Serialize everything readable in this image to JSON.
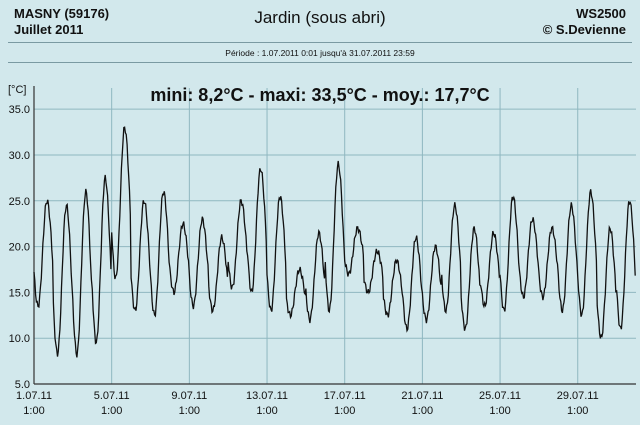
{
  "header": {
    "station": "MASNY (59176)",
    "month": "Juillet 2011",
    "title": "Jardin (sous abri)",
    "model": "WS2500",
    "author": "© S.Devienne",
    "period": "Période :   1.07.2011   0:01   jusqu'à 31.07.2011   23:59"
  },
  "stats": "mini: 8,2°C - maxi: 33,5°C - moy.: 17,7°C",
  "colors": {
    "background": "#d2e8ec",
    "grid": "#8fb7c0",
    "line": "#111111"
  },
  "chart_data": {
    "type": "line",
    "ylabel": "[°C]",
    "ylim": [
      5,
      36
    ],
    "xlim": [
      0,
      31
    ],
    "grid": true,
    "yticks": [
      5,
      10,
      15,
      20,
      25,
      30,
      35
    ],
    "yticklabels": [
      "5.0",
      "10.0",
      "15.0",
      "20.0",
      "25.0",
      "30.0",
      "35.0"
    ],
    "xticks": [
      0,
      4,
      8,
      12,
      16,
      20,
      24,
      28
    ],
    "xticklabels": [
      [
        "1.07.11",
        "1:00"
      ],
      [
        "5.07.11",
        "1:00"
      ],
      [
        "9.07.11",
        "1:00"
      ],
      [
        "13.07.11",
        "1:00"
      ],
      [
        "17.07.11",
        "1:00"
      ],
      [
        "21.07.11",
        "1:00"
      ],
      [
        "25.07.11",
        "1:00"
      ],
      [
        "29.07.11",
        "1:00"
      ]
    ],
    "series": [
      {
        "daily_min": [
          13.5,
          8.3,
          8.2,
          9.5,
          16.5,
          13.0,
          12.5,
          15.0,
          13.5,
          13.0,
          15.5,
          15.0,
          13.0,
          12.5,
          12.0,
          13.0,
          17.0,
          15.0,
          12.5,
          11.0,
          12.0,
          13.0,
          11.0,
          13.5,
          13.0,
          14.5,
          14.5,
          13.0,
          12.5,
          10.0,
          11.0
        ],
        "daily_max": [
          25.0,
          24.5,
          26.0,
          27.5,
          33.0,
          25.0,
          26.0,
          22.5,
          23.0,
          21.0,
          25.0,
          28.5,
          25.5,
          17.5,
          21.5,
          29.0,
          22.0,
          19.5,
          18.5,
          21.0,
          20.0,
          24.5,
          22.0,
          21.5,
          25.5,
          23.0,
          22.0,
          24.5,
          26.0,
          22.0,
          25.0
        ]
      }
    ]
  }
}
